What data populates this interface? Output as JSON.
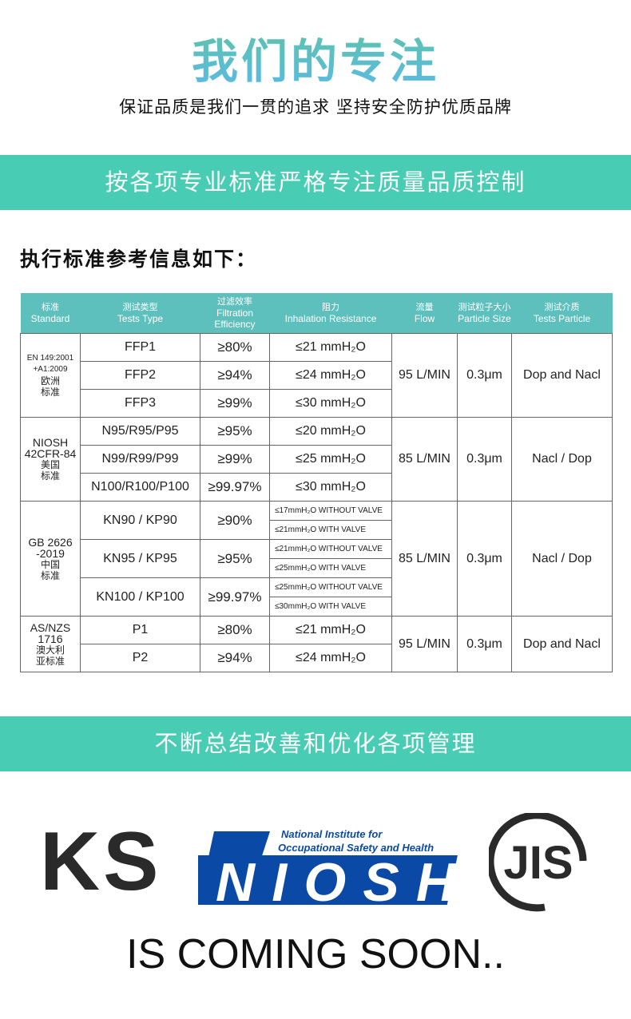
{
  "header": {
    "title": "我们的专注",
    "subtitle": "保证品质是我们一贯的追求 坚持安全防护优质品牌"
  },
  "banner1": "按各项专业标准严格专注质量品质控制",
  "section_title": "执行标准参考信息如下：",
  "table": {
    "headers": [
      {
        "cn": "标准",
        "en": "Standard"
      },
      {
        "cn": "测试类型",
        "en": "Tests  Type"
      },
      {
        "cn": "过滤效率",
        "en": "Filtration Efficiency"
      },
      {
        "cn": "阻力",
        "en": "Inhalation Resistance"
      },
      {
        "cn": "流量",
        "en": "Flow"
      },
      {
        "cn": "测试粒子大小",
        "en": "Particle Size"
      },
      {
        "cn": "测试介质",
        "en": "Tests Particle"
      }
    ],
    "groups": [
      {
        "standard_en": [
          "EN 149:2001",
          "+A1:2009"
        ],
        "standard_cn": [
          "欧洲",
          "标准"
        ],
        "small_en": true,
        "flow": "95 L/MIN",
        "size": "0.3μm",
        "particle": "Dop and Nacl",
        "rows": [
          {
            "type": "FFP1",
            "eff": "≥80%",
            "res": [
              "≤21  mmH₂O"
            ]
          },
          {
            "type": "FFP2",
            "eff": "≥94%",
            "res": [
              "≤24  mmH₂O"
            ]
          },
          {
            "type": "FFP3",
            "eff": "≥99%",
            "res": [
              "≤30  mmH₂O"
            ]
          }
        ]
      },
      {
        "standard_en": [
          "NIOSH",
          "42CFR-84"
        ],
        "standard_cn": [
          "美国",
          "标准"
        ],
        "flow": "85 L/MIN",
        "size": "0.3μm",
        "particle": "Nacl / Dop",
        "rows": [
          {
            "type": "N95/R95/P95",
            "eff": "≥95%",
            "res": [
              "≤20  mmH₂O"
            ]
          },
          {
            "type": "N99/R99/P99",
            "eff": "≥99%",
            "res": [
              "≤25  mmH₂O"
            ]
          },
          {
            "type": "N100/R100/P100",
            "eff": "≥99.97%",
            "res": [
              "≤30  mmH₂O"
            ]
          }
        ]
      },
      {
        "standard_en": [
          "GB 2626",
          "-2019"
        ],
        "standard_cn": [
          "中国",
          "标准"
        ],
        "flow": "85 L/MIN",
        "size": "0.3μm",
        "particle": "Nacl / Dop",
        "rows": [
          {
            "type": "KN90 / KP90",
            "eff": "≥90%",
            "res": [
              "≤17mmH₂O WITHOUT VALVE",
              "≤21mmH₂O WITH VALVE"
            ]
          },
          {
            "type": "KN95 / KP95",
            "eff": "≥95%",
            "res": [
              "≤21mmH₂O WITHOUT VALVE",
              "≤25mmH₂O WITH VALVE"
            ]
          },
          {
            "type": "KN100 / KP100",
            "eff": "≥99.97%",
            "res": [
              "≤25mmH₂O WITHOUT VALVE",
              "≤30mmH₂O WITH VALVE"
            ]
          }
        ]
      },
      {
        "standard_en": [
          "AS/NZS",
          "1716"
        ],
        "standard_cn": [
          "澳大利",
          "亚标准"
        ],
        "flow": "95 L/MIN",
        "size": "0.3μm",
        "particle": "Dop and Nacl",
        "rows": [
          {
            "type": "P1",
            "eff": "≥80%",
            "res": [
              "≤21  mmH₂O"
            ]
          },
          {
            "type": "P2",
            "eff": "≥94%",
            "res": [
              "≤24  mmH₂O"
            ]
          }
        ]
      }
    ]
  },
  "banner2": "不断总结改善和优化各项管理",
  "logos": {
    "ks": "KS",
    "niosh_line1": "National Institute for",
    "niosh_line2": "Occupational Safety and Health",
    "niosh": "NIOSH",
    "jis": "JIS"
  },
  "footer": "IS COMING SOON..",
  "colors": {
    "banner": "#48ccb3",
    "table_header": "#5dc0bd",
    "niosh_blue": "#0a4aa6"
  }
}
